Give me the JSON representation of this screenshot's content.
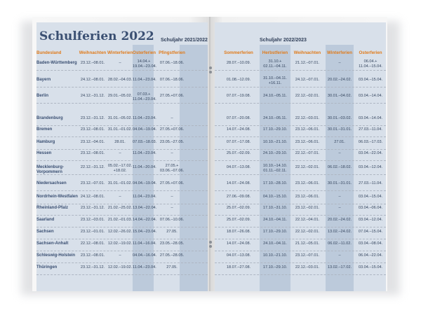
{
  "title": "Schulferien 2022",
  "left_year": "Schuljahr 2021/2022",
  "right_year": "Schuljahr 2022/2023",
  "left_headers": [
    "Bundesland",
    "Weihnachten",
    "Winterferien",
    "Osterferien",
    "Pfingstferien"
  ],
  "right_headers": [
    "Sommerferien",
    "Herbstferien",
    "Weihnachten",
    "Winterferien",
    "Osterferien"
  ],
  "rows": [
    {
      "state": "Baden-Württemberg",
      "left": [
        "23.12.–08.01.",
        "–",
        "14.04.+\n19.04.–23.04.",
        "07.06.–18.06."
      ],
      "right": [
        "28.07.–10.09.",
        "31.10.+\n02.11.–04.11.",
        "21.12.–07.01.",
        "–",
        "06.04.+\n11.04.–15.04."
      ]
    },
    {
      "state": "Bayern",
      "left": [
        "24.12.–08.01.",
        "28.02.–04.03.",
        "11.04.–23.04.",
        "07.06.–18.06."
      ],
      "right": [
        "01.08.–12.09.",
        "31.10.–04.11.\n+16.11.",
        "24.12.–07.01.",
        "20.02.–24.02.",
        "03.04.–15.04."
      ]
    },
    {
      "state": "Berlin",
      "left": [
        "24.12.–31.12.",
        "29.01.–05.02.",
        "07.03.+\n11.04.–23.04.",
        "27.05.+07.06."
      ],
      "right": [
        "07.07.–19.08.",
        "24.10.–05.11.",
        "22.12.–02.01.",
        "30.01.–04.02.",
        "03.04.–14.04."
      ]
    },
    {
      "state": "Brandenburg",
      "left": [
        "23.12.–31.12.",
        "31.01.–05.02.",
        "11.04.–23.04.",
        "–"
      ],
      "right": [
        "07.07.–20.08.",
        "24.10.–05.11.",
        "22.12.–03.01.",
        "30.01.–03.02.",
        "03.04.–14.04."
      ]
    },
    {
      "state": "Bremen",
      "left": [
        "23.12.–08.01.",
        "31.01.–01.02.",
        "04.04.–19.04.",
        "27.05.+07.06."
      ],
      "right": [
        "14.07.–24.08.",
        "17.10.–29.10.",
        "23.12.–06.01.",
        "30.01.–31.01.",
        "27.03.–11.04."
      ]
    },
    {
      "state": "Hamburg",
      "left": [
        "23.12.–04.01.",
        "28.01.",
        "07.03.–18.03.",
        "23.05.–27.05."
      ],
      "right": [
        "07.07.–17.08.",
        "10.10.–21.10.",
        "23.12.–06.01.",
        "27.01.",
        "06.03.–17.03."
      ]
    },
    {
      "state": "Hessen",
      "left": [
        "23.12.–08.01.",
        "–",
        "11.04.–23.04.",
        "–"
      ],
      "right": [
        "25.07.–02.09.",
        "24.10.–29.10.",
        "22.12.–07.01.",
        "–",
        "03.04.–22.04."
      ]
    },
    {
      "state": "Mecklenburg-\nVorpommern",
      "left": [
        "22.12.–31.12.",
        "05.02.–17.02.\n+18.02.",
        "11.04.–20.04.",
        "27.05.+\n03.06.–07.06."
      ],
      "right": [
        "04.07.–13.08.",
        "10.10.–14.10.\n01.11.–02.11.",
        "22.12.–02.01.",
        "06.02.–18.02.",
        "03.04.–12.04."
      ]
    },
    {
      "state": "Niedersachsen",
      "left": [
        "23.12.–07.01.",
        "31.01.–01.02.",
        "04.04.–19.04.",
        "27.05.+07.06."
      ],
      "right": [
        "14.07.–24.08.",
        "17.10.–28.10.",
        "23.12.–06.01.",
        "30.01.–31.01.",
        "27.03.–11.04."
      ]
    },
    {
      "state": "Nordrhein-Westfalen",
      "left": [
        "24.12.–08.01.",
        "–",
        "11.04.–23.04.",
        "–"
      ],
      "right": [
        "27.06.–09.08.",
        "04.10.–15.10.",
        "23.12.–06.01.",
        "–",
        "03.04.–15.04."
      ]
    },
    {
      "state": "Rheinland-Pfalz",
      "left": [
        "23.12.–31.12.",
        "21.02.–25.02.",
        "13.04.–22.04.",
        "–"
      ],
      "right": [
        "25.07.–02.09.",
        "17.10.–31.10.",
        "23.12.–02.01.",
        "–",
        "03.04.–06.04."
      ]
    },
    {
      "state": "Saarland",
      "left": [
        "23.12.–03.01.",
        "21.02.–01.03.",
        "14.04.–22.04.",
        "07.06.–10.06."
      ],
      "right": [
        "25.07.–02.09.",
        "24.10.–04.11.",
        "22.12.–04.01.",
        "20.02.–24.02.",
        "03.04.–12.04."
      ]
    },
    {
      "state": "Sachsen",
      "left": [
        "23.12.–01.01.",
        "12.02.–26.02.",
        "15.04.–23.04.",
        "27.05."
      ],
      "right": [
        "18.07.–26.08.",
        "17.10.–29.10.",
        "22.12.–02.01.",
        "13.02.–24.02.",
        "07.04.–15.04."
      ]
    },
    {
      "state": "Sachsen-Anhalt",
      "left": [
        "22.12.–08.01.",
        "12.02.–19.02.",
        "11.04.–16.04.",
        "23.05.–28.05."
      ],
      "right": [
        "14.07.–24.08.",
        "24.10.–04.11.",
        "21.12.–05.01.",
        "06.02.–11.02.",
        "03.04.–08.04."
      ]
    },
    {
      "state": "Schleswig-Holstein",
      "left": [
        "23.12.–08.01.",
        "–",
        "04.04.–16.04.",
        "27.05.–28.05."
      ],
      "right": [
        "04.07.–13.08.",
        "10.10.–21.10.",
        "23.12.–07.01.",
        "–",
        "06.04.–22.04."
      ]
    },
    {
      "state": "Thüringen",
      "left": [
        "23.12.–31.12.",
        "12.02.–19.02.",
        "11.04.–23.04.",
        "27.05."
      ],
      "right": [
        "18.07.–27.08.",
        "17.10.–29.10.",
        "22.12.–03.01.",
        "13.02.–17.02.",
        "03.04.–15.04."
      ]
    }
  ]
}
